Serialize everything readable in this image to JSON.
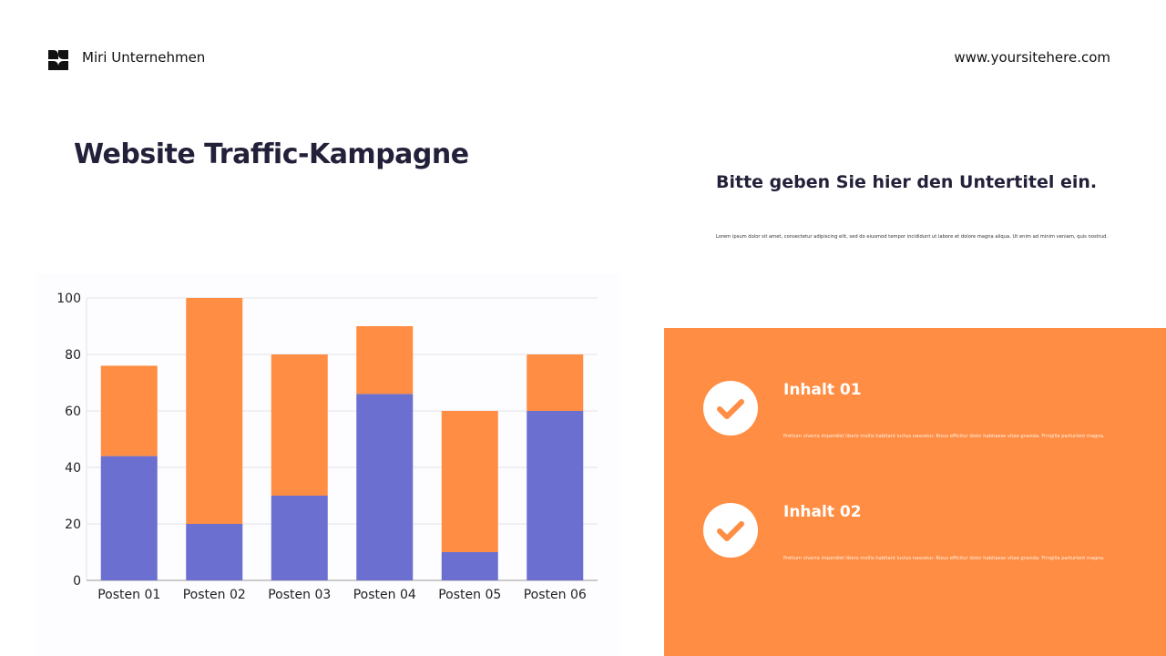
{
  "header": {
    "brand": "Miri Unternehmen",
    "website": "www.yoursitehere.com"
  },
  "title": "Website Traffic-Kampagne",
  "subtitle": "Bitte geben Sie hier den Untertitel ein.",
  "body_text": "Lorem ipsum dolor sit amet, consectetur adipiscing elit, sed do eiusmod tempor incididunt ut labore et dolore magna aliqua. Ut enim ad minim veniam, quis nostrud.",
  "colors": {
    "orange": "#ff8d43",
    "blue": "#6b6fd0",
    "text": "#23213a"
  },
  "items": [
    {
      "heading": "Inhalt 01",
      "text": "Pretium viverra imperdiet libero mollis habitant luctus nascetur. Risus efficitur dolor habitasse vitae gravida. Fringilla parturient magna.",
      "icon": "check-circle-icon"
    },
    {
      "heading": "Inhalt 02",
      "text": "Pretium viverra imperdiet libero mollis habitant luctus nascetur. Risus efficitur dolor habitasse vitae gravida. Fringilla parturient magna.",
      "icon": "check-circle-icon"
    }
  ],
  "chart_data": {
    "type": "bar",
    "stacked": true,
    "categories": [
      "Posten 01",
      "Posten 02",
      "Posten 03",
      "Posten 04",
      "Posten 05",
      "Posten 06"
    ],
    "series": [
      {
        "color": "#6b6fd0",
        "values": [
          44,
          20,
          30,
          66,
          10,
          60
        ]
      },
      {
        "color": "#ff8d43",
        "values": [
          32,
          80,
          50,
          24,
          50,
          20
        ]
      }
    ],
    "ylim": [
      0,
      100
    ],
    "yticks": [
      0,
      20,
      40,
      60,
      80,
      100
    ],
    "grid": true,
    "legend": "none"
  }
}
